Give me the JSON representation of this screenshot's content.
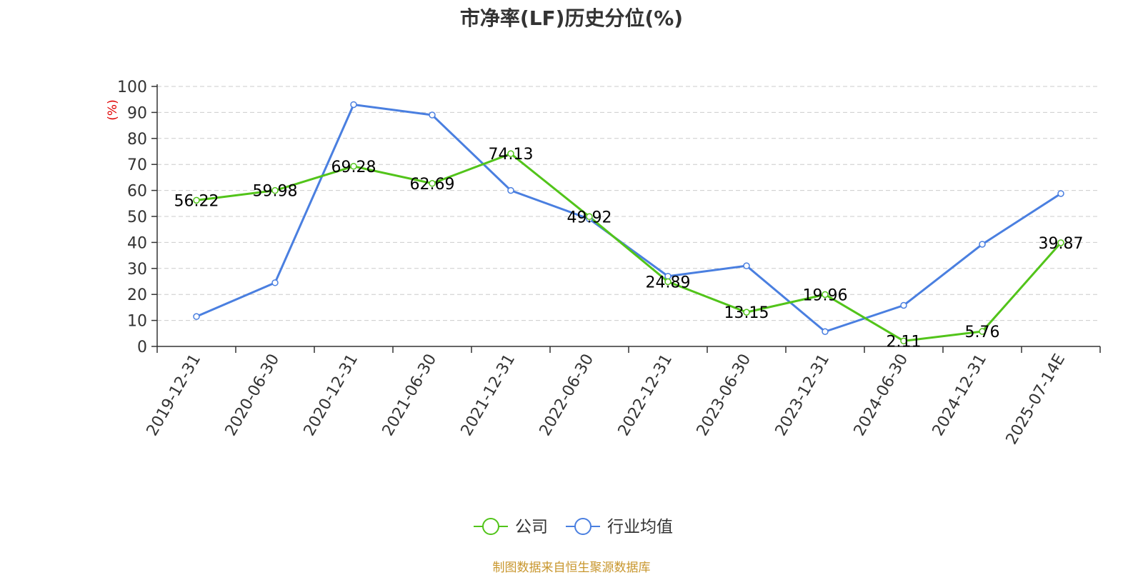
{
  "title": "市净率(LF)历史分位(%)",
  "source": "制图数据来自恒生聚源数据库",
  "colors": {
    "company": "#52c41a",
    "industry": "#4a7fe0",
    "unit": "#e00000",
    "axis": "#333333",
    "grid": "#cccccc",
    "source": "#c8962d"
  },
  "chart_data": {
    "type": "line",
    "title": "市净率(LF)历史分位(%)",
    "xlabel": "",
    "ylabel": "(%)",
    "ylim": [
      0,
      100
    ],
    "yticks": [
      0,
      10,
      20,
      30,
      40,
      50,
      60,
      70,
      80,
      90,
      100
    ],
    "grid": true,
    "legend": "bottom-center",
    "categories": [
      "2019-12-31",
      "2020-06-30",
      "2020-12-31",
      "2021-06-30",
      "2021-12-31",
      "2022-06-30",
      "2022-12-31",
      "2023-06-30",
      "2023-12-31",
      "2024-06-30",
      "2024-12-31",
      "2025-07-14E"
    ],
    "series": [
      {
        "name": "公司",
        "color": "#52c41a",
        "show_labels": true,
        "values": [
          56.22,
          59.98,
          69.28,
          62.69,
          74.13,
          49.92,
          24.89,
          13.15,
          19.96,
          2.11,
          5.76,
          39.87
        ],
        "labels": [
          "56.22",
          "59.98",
          "69.28",
          "62.69",
          "74.13",
          "49.92",
          "24.89",
          "13.15",
          "19.96",
          "2.11",
          "5.76",
          "39.87"
        ]
      },
      {
        "name": "行业均值",
        "color": "#4a7fe0",
        "show_labels": false,
        "values": [
          11.5,
          24.5,
          93.0,
          89.0,
          60.0,
          49.0,
          27.0,
          31.0,
          5.7,
          15.8,
          39.3,
          58.8
        ]
      }
    ]
  }
}
